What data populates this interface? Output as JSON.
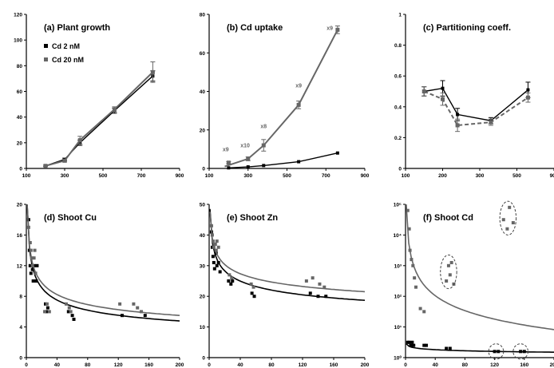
{
  "chart_data": [
    {
      "id": "a",
      "type": "line",
      "title": "(a) Plant growth",
      "xlim": [
        100,
        900
      ],
      "ylim": [
        0,
        120
      ],
      "log_y": false,
      "xticks": [
        "100",
        "300",
        "500",
        "700",
        "900"
      ],
      "yticks": [
        "0",
        "20",
        "40",
        "60",
        "80",
        "100",
        "120"
      ],
      "legend": {
        "placement": "top-left",
        "entries": [
          "Cd 2 nM",
          "Cd 20 nM"
        ]
      },
      "series": [
        {
          "name": "Cd 2 nM",
          "color": "#000000",
          "x": [
            200,
            300,
            380,
            560,
            760
          ],
          "y": [
            2,
            7,
            20,
            45,
            72
          ],
          "err": [
            0.5,
            1,
            2,
            2,
            4
          ],
          "fit": [
            [
              200,
              2
            ],
            [
              300,
              7
            ],
            [
              380,
              20
            ],
            [
              560,
              45
            ],
            [
              760,
              72
            ]
          ]
        },
        {
          "name": "Cd 20 nM",
          "color": "#666666",
          "x": [
            200,
            300,
            380,
            560,
            760
          ],
          "y": [
            2,
            6,
            22,
            46,
            75
          ],
          "err": [
            0.5,
            1,
            3,
            2,
            8
          ],
          "fit": [
            [
              200,
              2
            ],
            [
              300,
              6
            ],
            [
              380,
              22
            ],
            [
              560,
              46
            ],
            [
              760,
              75
            ]
          ]
        }
      ]
    },
    {
      "id": "b",
      "type": "line",
      "title": "(b) Cd uptake",
      "xlim": [
        100,
        900
      ],
      "ylim": [
        0,
        80
      ],
      "log_y": false,
      "xticks": [
        "100",
        "300",
        "500",
        "700",
        "900"
      ],
      "yticks": [
        "0",
        "20",
        "40",
        "60",
        "80"
      ],
      "series": [
        {
          "name": "Cd 2 nM",
          "color": "#000000",
          "x": [
            200,
            300,
            380,
            560,
            760
          ],
          "y": [
            0.3,
            0.8,
            1.5,
            3.5,
            8
          ],
          "err": [
            0,
            0,
            0,
            0,
            0
          ],
          "fit": [
            [
              200,
              0.3
            ],
            [
              300,
              0.8
            ],
            [
              380,
              1.5
            ],
            [
              560,
              3.5
            ],
            [
              760,
              8
            ]
          ]
        },
        {
          "name": "Cd 20 nM",
          "color": "#666666",
          "x": [
            200,
            300,
            380,
            560,
            760
          ],
          "y": [
            3,
            5,
            12,
            33,
            72
          ],
          "err": [
            0.5,
            1,
            3,
            2,
            2
          ],
          "fit": [
            [
              180,
              1
            ],
            [
              300,
              5
            ],
            [
              380,
              12
            ],
            [
              560,
              33
            ],
            [
              760,
              72
            ]
          ]
        }
      ],
      "annotations": [
        {
          "text": "x9",
          "x": 185,
          "y": 9
        },
        {
          "text": "x10",
          "x": 285,
          "y": 11
        },
        {
          "text": "x8",
          "x": 380,
          "y": 21
        },
        {
          "text": "x9",
          "x": 560,
          "y": 42
        },
        {
          "text": "x9",
          "x": 720,
          "y": 72
        }
      ]
    },
    {
      "id": "c",
      "type": "line",
      "title": "(c) Partitioning coeff.",
      "xlim": [
        100,
        900
      ],
      "ylim": [
        0,
        1
      ],
      "log_y": false,
      "xticks": [
        "100",
        "200",
        "300",
        "500",
        "900"
      ],
      "yticks": [
        "0",
        "0.2",
        "0.4",
        "0.6",
        "0.8",
        "1"
      ],
      "series": [
        {
          "name": "Cd 2 nM",
          "color": "#000000",
          "x": [
            200,
            300,
            380,
            560,
            760
          ],
          "y": [
            0.5,
            0.52,
            0.35,
            0.31,
            0.51
          ],
          "err": [
            0.03,
            0.05,
            0.04,
            0.02,
            0.05
          ],
          "fit": [
            [
              200,
              0.5
            ],
            [
              300,
              0.52
            ],
            [
              380,
              0.35
            ],
            [
              560,
              0.31
            ],
            [
              760,
              0.51
            ]
          ]
        },
        {
          "name": "Cd 20 nM",
          "color": "#666666",
          "x": [
            200,
            300,
            380,
            560,
            760
          ],
          "y": [
            0.5,
            0.45,
            0.28,
            0.3,
            0.46
          ],
          "err": [
            0.03,
            0.04,
            0.04,
            0.02,
            0.03
          ],
          "fit": [
            [
              200,
              0.5
            ],
            [
              300,
              0.45
            ],
            [
              380,
              0.28
            ],
            [
              560,
              0.3
            ],
            [
              760,
              0.46
            ]
          ]
        }
      ]
    },
    {
      "id": "d",
      "type": "scatter",
      "title": "(d) Shoot Cu",
      "xlim": [
        0,
        200
      ],
      "ylim": [
        0,
        20
      ],
      "log_y": false,
      "xticks": [
        "0",
        "40",
        "80",
        "120",
        "160",
        "200"
      ],
      "yticks": [
        "0",
        "4",
        "8",
        "12",
        "16",
        "20"
      ],
      "series": [
        {
          "name": "Cd 2 nM",
          "color": "#000000",
          "points": [
            [
              3,
              18
            ],
            [
              4,
              14
            ],
            [
              5,
              12
            ],
            [
              6,
              11
            ],
            [
              8,
              11.5
            ],
            [
              9,
              10
            ],
            [
              10,
              12
            ],
            [
              12,
              11
            ],
            [
              13,
              10
            ],
            [
              14,
              12
            ],
            [
              25,
              7
            ],
            [
              26,
              6
            ],
            [
              28,
              6.5
            ],
            [
              55,
              6
            ],
            [
              60,
              5.5
            ],
            [
              62,
              5
            ],
            [
              125,
              5.5
            ],
            [
              155,
              5.5
            ]
          ],
          "fit": {
            "a": 21.1,
            "b": -0.28
          }
        },
        {
          "name": "Cd 20 nM",
          "color": "#666666",
          "points": [
            [
              3,
              17
            ],
            [
              5,
              15
            ],
            [
              6,
              14
            ],
            [
              7,
              13
            ],
            [
              8,
              12
            ],
            [
              10,
              13
            ],
            [
              11,
              14
            ],
            [
              12,
              11
            ],
            [
              24,
              6
            ],
            [
              27,
              7
            ],
            [
              30,
              6
            ],
            [
              52,
              7
            ],
            [
              56,
              6.5
            ],
            [
              58,
              6
            ],
            [
              122,
              7
            ],
            [
              140,
              7
            ],
            [
              145,
              6.5
            ],
            [
              150,
              6
            ]
          ],
          "fit": {
            "a": 20.7,
            "b": -0.25
          }
        }
      ]
    },
    {
      "id": "e",
      "type": "scatter",
      "title": "(e) Shoot Zn",
      "xlim": [
        0,
        200
      ],
      "ylim": [
        0,
        50
      ],
      "log_y": false,
      "xticks": [
        "0",
        "40",
        "80",
        "120",
        "160",
        "200"
      ],
      "yticks": [
        "0",
        "10",
        "20",
        "30",
        "40",
        "50"
      ],
      "series": [
        {
          "name": "Cd 2 nM",
          "color": "#000000",
          "points": [
            [
              3,
              41
            ],
            [
              4,
              36
            ],
            [
              5,
              33
            ],
            [
              6,
              31
            ],
            [
              7,
              29
            ],
            [
              9,
              34
            ],
            [
              10,
              30
            ],
            [
              12,
              31
            ],
            [
              14,
              28
            ],
            [
              25,
              25
            ],
            [
              28,
              24
            ],
            [
              30,
              25
            ],
            [
              55,
              21
            ],
            [
              58,
              20
            ],
            [
              130,
              21
            ],
            [
              140,
              20
            ],
            [
              150,
              20
            ]
          ],
          "fit": {
            "a": 48.5,
            "b": -0.18
          }
        },
        {
          "name": "Cd 20 nM",
          "color": "#666666",
          "points": [
            [
              3,
              43
            ],
            [
              4,
              40
            ],
            [
              5,
              38
            ],
            [
              6,
              36
            ],
            [
              8,
              37
            ],
            [
              9,
              35
            ],
            [
              10,
              38
            ],
            [
              12,
              36
            ],
            [
              26,
              27
            ],
            [
              29,
              26
            ],
            [
              54,
              24
            ],
            [
              57,
              23
            ],
            [
              125,
              25
            ],
            [
              133,
              26
            ],
            [
              142,
              24
            ],
            [
              148,
              23
            ]
          ],
          "fit": {
            "a": 47.6,
            "b": -0.15
          }
        }
      ]
    },
    {
      "id": "f",
      "type": "scatter",
      "title": "(f) Shoot Cd",
      "xlim": [
        0,
        200
      ],
      "ylim": [
        10,
        15
      ],
      "log_y": true,
      "xticks": [
        "0",
        "40",
        "80",
        "120",
        "160",
        "200"
      ],
      "yticks": [
        "10⁰",
        "10¹",
        "10²",
        "10³",
        "10⁴",
        "10⁵"
      ],
      "series": [
        {
          "name": "Cd 2 nM",
          "color": "#000000",
          "points": [
            [
              3,
              10.5
            ],
            [
              5,
              10.5
            ],
            [
              7,
              10.4
            ],
            [
              9,
              10.5
            ],
            [
              11,
              10.4
            ],
            [
              25,
              10.4
            ],
            [
              28,
              10.4
            ],
            [
              55,
              10.3
            ],
            [
              60,
              10.3
            ],
            [
              120,
              10.2
            ],
            [
              125,
              10.2
            ],
            [
              155,
              10.2
            ],
            [
              160,
              10.2
            ]
          ],
          "fit": {
            "a": 10.45,
            "b": -0.005
          }
        },
        {
          "name": "Cd 20 nM",
          "color": "#666666",
          "points": [
            [
              3,
              14.8
            ],
            [
              5,
              14.2
            ],
            [
              6,
              13.5
            ],
            [
              8,
              13.2
            ],
            [
              10,
              13
            ],
            [
              12,
              12.6
            ],
            [
              14,
              12.3
            ],
            [
              20,
              11.6
            ],
            [
              25,
              11.5
            ],
            [
              55,
              12.5
            ],
            [
              58,
              13
            ],
            [
              60,
              12.7
            ],
            [
              62,
              13.1
            ],
            [
              65,
              12.4
            ],
            [
              132,
              14.5
            ],
            [
              137,
              14.2
            ],
            [
              140,
              14.9
            ],
            [
              145,
              14.4
            ]
          ],
          "fit": {
            "a": 15.0,
            "b": -0.06
          }
        }
      ]
    }
  ]
}
